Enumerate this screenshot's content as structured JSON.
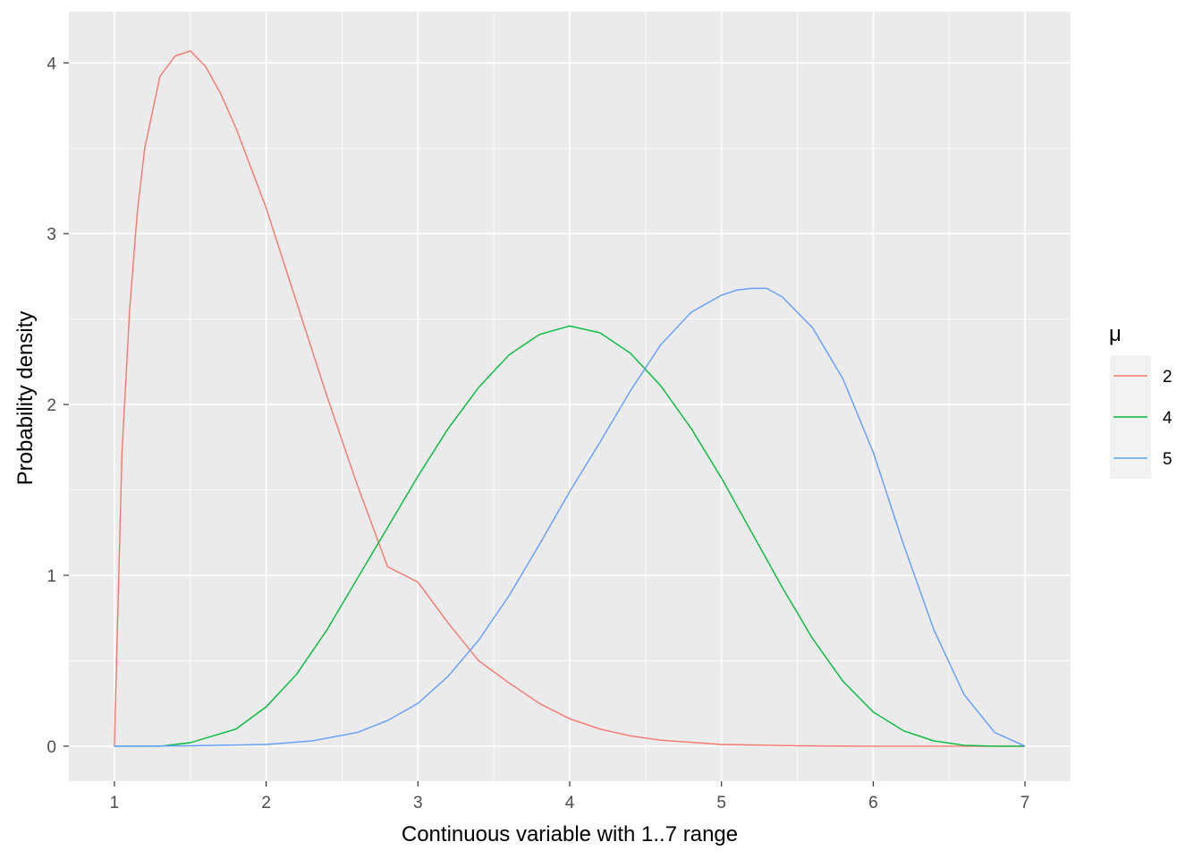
{
  "chart_data": {
    "type": "line",
    "xlabel": "Continuous variable with 1..7 range",
    "ylabel": "Probability density",
    "xlim": [
      0.7,
      7.3
    ],
    "ylim": [
      -0.205,
      4.3
    ],
    "xticks": [
      1,
      2,
      3,
      4,
      5,
      6,
      7
    ],
    "yticks": [
      0,
      1,
      2,
      3,
      4
    ],
    "grid": true,
    "legend": {
      "title": "μ",
      "placement": "right"
    },
    "series": [
      {
        "name": "2",
        "color": "#F8766D",
        "x": [
          1.0,
          1.05,
          1.1,
          1.15,
          1.2,
          1.3,
          1.4,
          1.5,
          1.6,
          1.7,
          1.8,
          2.0,
          2.2,
          2.4,
          2.6,
          2.8,
          3.0,
          3.2,
          3.4,
          3.6,
          3.8,
          4.0,
          4.2,
          4.4,
          4.6,
          5.0,
          5.5,
          6.0,
          6.5,
          7.0
        ],
        "y": [
          0.0,
          1.72,
          2.55,
          3.12,
          3.5,
          3.92,
          4.04,
          4.07,
          3.98,
          3.82,
          3.62,
          3.15,
          2.6,
          2.05,
          1.53,
          1.05,
          0.96,
          0.72,
          0.5,
          0.37,
          0.25,
          0.16,
          0.1,
          0.06,
          0.035,
          0.01,
          0.002,
          0.0,
          0.0,
          0.0
        ]
      },
      {
        "name": "4",
        "color": "#00BA38",
        "x": [
          1.0,
          1.3,
          1.5,
          1.8,
          2.0,
          2.2,
          2.4,
          2.6,
          2.8,
          3.0,
          3.2,
          3.4,
          3.6,
          3.8,
          4.0,
          4.2,
          4.4,
          4.6,
          4.8,
          5.0,
          5.2,
          5.4,
          5.6,
          5.8,
          6.0,
          6.2,
          6.4,
          6.6,
          6.8,
          7.0
        ],
        "y": [
          0.0,
          0.0,
          0.02,
          0.1,
          0.23,
          0.42,
          0.68,
          0.98,
          1.28,
          1.58,
          1.86,
          2.1,
          2.29,
          2.41,
          2.46,
          2.42,
          2.3,
          2.11,
          1.86,
          1.57,
          1.25,
          0.93,
          0.63,
          0.38,
          0.2,
          0.09,
          0.03,
          0.005,
          0.0,
          0.0
        ]
      },
      {
        "name": "5",
        "color": "#619CFF",
        "x": [
          1.0,
          1.5,
          2.0,
          2.3,
          2.6,
          2.8,
          3.0,
          3.2,
          3.4,
          3.6,
          3.8,
          4.0,
          4.2,
          4.4,
          4.6,
          4.8,
          5.0,
          5.1,
          5.2,
          5.25,
          5.3,
          5.4,
          5.6,
          5.8,
          6.0,
          6.2,
          6.4,
          6.6,
          6.8,
          7.0
        ],
        "y": [
          0.0,
          0.002,
          0.01,
          0.03,
          0.08,
          0.15,
          0.25,
          0.41,
          0.62,
          0.88,
          1.18,
          1.49,
          1.78,
          2.08,
          2.35,
          2.54,
          2.64,
          2.67,
          2.68,
          2.68,
          2.68,
          2.63,
          2.45,
          2.15,
          1.72,
          1.18,
          0.68,
          0.3,
          0.08,
          0.0
        ]
      }
    ]
  }
}
